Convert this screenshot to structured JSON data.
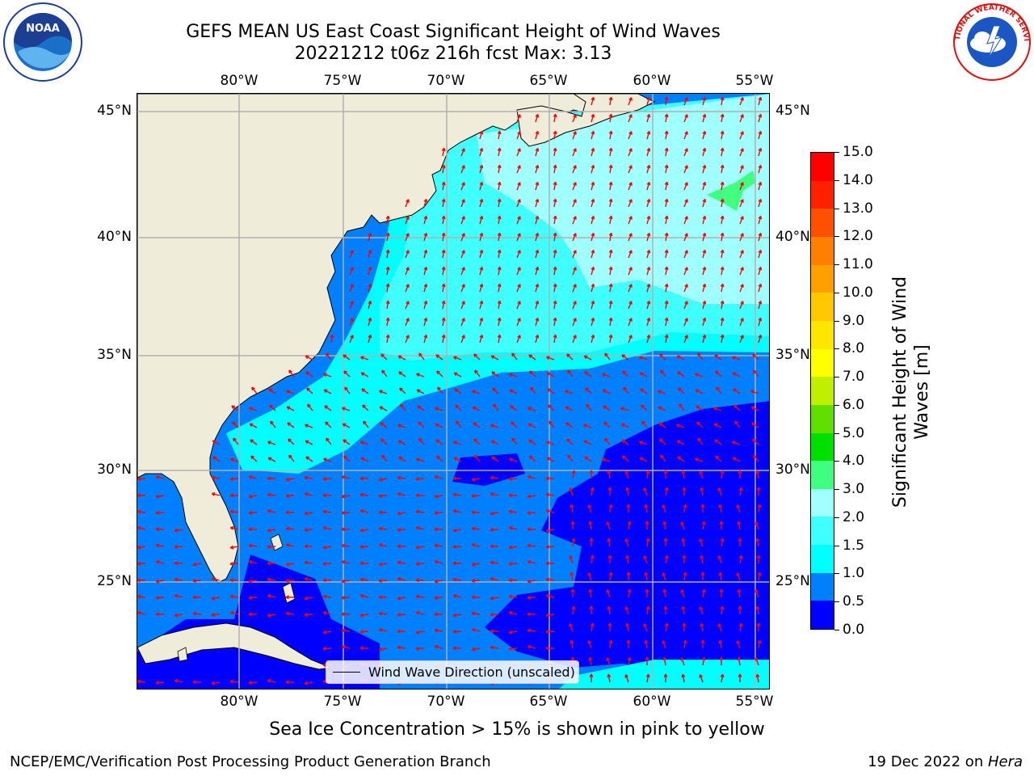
{
  "title": {
    "line1": "GEFS MEAN US East Coast Significant Height of Wind Waves",
    "line2": "20221212 t06z 216h fcst   Max: 3.13"
  },
  "logos": {
    "left": {
      "name": "noaa-logo",
      "text": "NOAA",
      "ring_text": "NATIONAL OCEANIC AND ATMOSPHERIC ADMINISTRATION · U.S. DEPARTMENT OF COMMERCE"
    },
    "right": {
      "name": "nws-logo",
      "ring_text": "NATIONAL WEATHER SERVICE"
    }
  },
  "map": {
    "lon_labels": [
      "80°W",
      "75°W",
      "70°W",
      "65°W",
      "60°W",
      "55°W"
    ],
    "lat_labels": [
      "45°N",
      "40°N",
      "35°N",
      "30°N",
      "25°N"
    ],
    "arrow_color": "#ff0000",
    "land_color": "#efedd9",
    "legend_label": "Wind Wave Direction (unscaled)"
  },
  "colorbar": {
    "label": "Significant Height of Wind Waves [m]",
    "ticks": [
      "0.0",
      "0.5",
      "1.0",
      "1.5",
      "2.0",
      "3.0",
      "4.0",
      "5.0",
      "6.0",
      "7.0",
      "8.0",
      "9.0",
      "10.0",
      "11.0",
      "12.0",
      "13.0",
      "14.0",
      "15.0"
    ],
    "colors": [
      "#0000ff",
      "#0080ff",
      "#00ffff",
      "#40ffff",
      "#a0ffff",
      "#40ff80",
      "#00e000",
      "#60e000",
      "#c0f000",
      "#ffff00",
      "#ffe600",
      "#ffc800",
      "#ffa000",
      "#ff8000",
      "#ff5000",
      "#ff2000",
      "#ff0000"
    ]
  },
  "note": "Sea Ice Concentration > 15% is shown in pink to yellow",
  "footer": {
    "left": "NCEP/EMC/Verification Post Processing Product Generation Branch",
    "right_prefix": "19 Dec 2022 on ",
    "right_host": "Hera"
  }
}
